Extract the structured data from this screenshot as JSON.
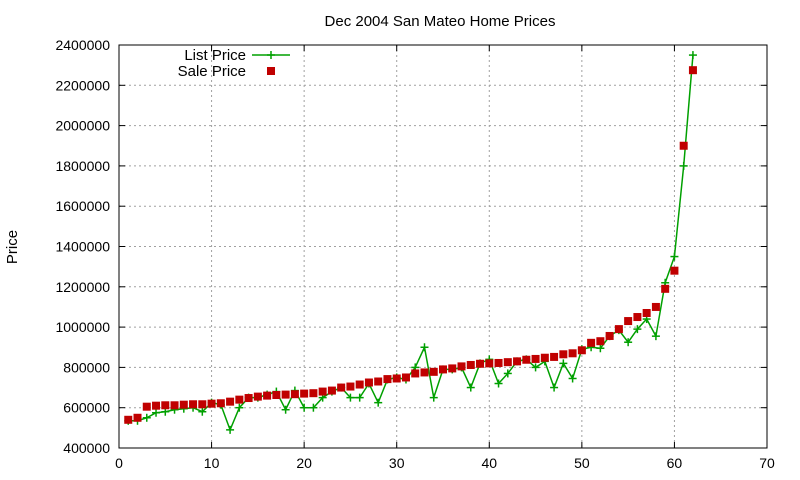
{
  "chart_data": {
    "type": "line",
    "title": "Dec 2004 San Mateo Home Prices",
    "xlabel": "",
    "ylabel": "Price",
    "xlim": [
      0,
      70
    ],
    "ylim": [
      400000,
      2400000
    ],
    "x_ticks": [
      0,
      10,
      20,
      30,
      40,
      50,
      60,
      70
    ],
    "y_ticks": [
      400000,
      600000,
      800000,
      1000000,
      1200000,
      1400000,
      1600000,
      1800000,
      2000000,
      2200000,
      2400000
    ],
    "grid": true,
    "legend_position": "top-left",
    "series": [
      {
        "name": "List Price",
        "style": "linespoints",
        "marker": "plus",
        "color": "#00a000",
        "x": [
          1,
          2,
          3,
          4,
          5,
          6,
          7,
          8,
          9,
          10,
          11,
          12,
          13,
          14,
          15,
          16,
          17,
          18,
          19,
          20,
          21,
          22,
          23,
          24,
          25,
          26,
          27,
          28,
          29,
          30,
          31,
          32,
          33,
          34,
          35,
          36,
          37,
          38,
          39,
          40,
          41,
          42,
          43,
          44,
          45,
          46,
          47,
          48,
          49,
          50,
          51,
          52,
          53,
          54,
          55,
          56,
          57,
          58,
          59,
          60,
          61,
          62
        ],
        "values": [
          535000,
          535000,
          550000,
          575000,
          580000,
          590000,
          595000,
          600000,
          580000,
          625000,
          615000,
          490000,
          600000,
          650000,
          650000,
          665000,
          680000,
          590000,
          685000,
          600000,
          600000,
          650000,
          680000,
          700000,
          650000,
          650000,
          720000,
          625000,
          740000,
          750000,
          740000,
          800000,
          900000,
          650000,
          790000,
          790000,
          800000,
          700000,
          820000,
          840000,
          720000,
          770000,
          830000,
          840000,
          800000,
          830000,
          700000,
          820000,
          745000,
          890000,
          900000,
          895000,
          955000,
          985000,
          925000,
          990000,
          1040000,
          955000,
          1220000,
          1350000,
          1800000,
          2350000
        ]
      },
      {
        "name": "Sale Price",
        "style": "points",
        "marker": "square",
        "color": "#c00000",
        "x": [
          1,
          2,
          3,
          4,
          5,
          6,
          7,
          8,
          9,
          10,
          11,
          12,
          13,
          14,
          15,
          16,
          17,
          18,
          19,
          20,
          21,
          22,
          23,
          24,
          25,
          26,
          27,
          28,
          29,
          30,
          31,
          32,
          33,
          34,
          35,
          36,
          37,
          38,
          39,
          40,
          41,
          42,
          43,
          44,
          45,
          46,
          47,
          48,
          49,
          50,
          51,
          52,
          53,
          54,
          55,
          56,
          57,
          58,
          59,
          60,
          61,
          62
        ],
        "values": [
          540000,
          550000,
          605000,
          610000,
          612000,
          612000,
          615000,
          617000,
          617000,
          620000,
          622000,
          630000,
          640000,
          648000,
          655000,
          660000,
          663000,
          665000,
          667000,
          670000,
          672000,
          680000,
          685000,
          700000,
          705000,
          715000,
          725000,
          730000,
          742000,
          745000,
          750000,
          770000,
          775000,
          778000,
          790000,
          795000,
          805000,
          812000,
          818000,
          820000,
          822000,
          826000,
          830000,
          838000,
          842000,
          848000,
          852000,
          865000,
          870000,
          885000,
          922000,
          930000,
          956000,
          990000,
          1030000,
          1050000,
          1070000,
          1100000,
          1190000,
          1280000,
          1900000,
          2275000
        ]
      }
    ]
  }
}
